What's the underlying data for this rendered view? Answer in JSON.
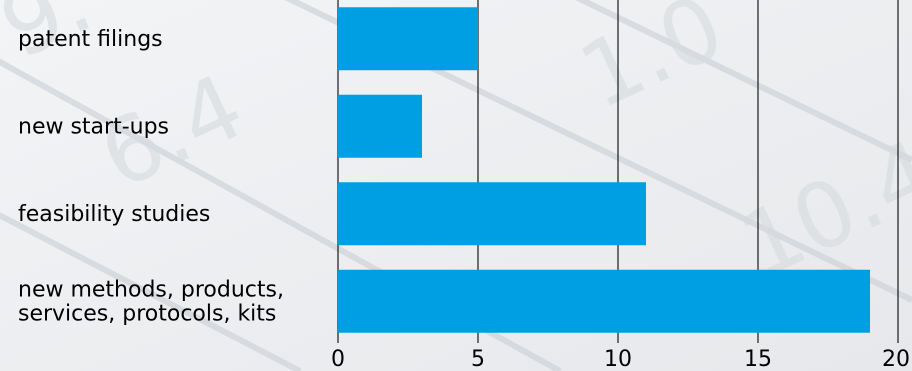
{
  "chart_data": {
    "type": "bar",
    "orientation": "horizontal",
    "categories": [
      [
        "patent filings"
      ],
      [
        "new start-ups"
      ],
      [
        "feasibility studies"
      ],
      [
        "new methods, products,",
        "services, protocols, kits"
      ]
    ],
    "values": [
      5,
      3,
      11,
      19
    ],
    "xlim": [
      0,
      20
    ],
    "xticks": [
      0,
      5,
      10,
      15,
      20
    ],
    "grid": "vertical",
    "bar_color": "#009fe3",
    "title": "",
    "xlabel": "",
    "ylabel": ""
  }
}
